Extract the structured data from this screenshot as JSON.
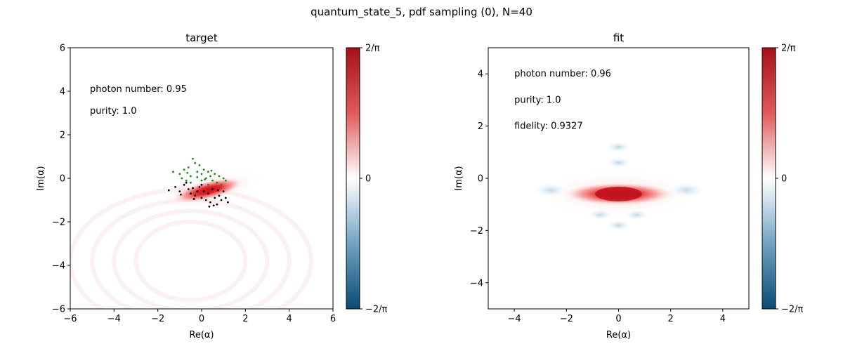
{
  "figure": {
    "title": "quantum_state_5, pdf sampling (0), N=40"
  },
  "colors": {
    "positive": "#c8151b",
    "zero": "#ffffff",
    "negative": "#0b4f78",
    "sample_green": "#1a8a1a",
    "sample_black": "#000000"
  },
  "chart_data": [
    {
      "type": "heatmap",
      "title": "target",
      "xlabel": "Re(α)",
      "ylabel": "Im(α)",
      "xlim": [
        -6,
        6
      ],
      "ylim": [
        -6,
        6
      ],
      "xticks": [
        -6,
        -4,
        -2,
        0,
        2,
        4,
        6
      ],
      "yticks": [
        -6,
        -4,
        -2,
        0,
        2,
        4,
        6
      ],
      "annotations": [
        {
          "text": "photon number: 0.95",
          "x": -5.1,
          "y": 4.1
        },
        {
          "text": "purity: 1.0",
          "x": -5.1,
          "y": 3.1
        }
      ],
      "colorbar": {
        "ticks": [
          "2/π",
          "0",
          "−2/π"
        ]
      },
      "blob": {
        "cx": 0.3,
        "cy": -0.55,
        "a": 1.7,
        "b": 0.45,
        "angle_deg": -14
      },
      "samples_green": [
        [
          -1.3,
          0.3
        ],
        [
          -1.0,
          0.2
        ],
        [
          -0.8,
          0.4
        ],
        [
          -0.6,
          0.5
        ],
        [
          -0.5,
          0.1
        ],
        [
          -0.4,
          0.9
        ],
        [
          -0.3,
          0.7
        ],
        [
          -0.2,
          0.3
        ],
        [
          -0.1,
          0.6
        ],
        [
          0.0,
          0.2
        ],
        [
          0.1,
          0.4
        ],
        [
          0.2,
          0.0
        ],
        [
          0.3,
          0.3
        ],
        [
          0.4,
          0.1
        ],
        [
          0.5,
          -0.1
        ],
        [
          0.6,
          0.2
        ],
        [
          0.7,
          -0.2
        ],
        [
          0.8,
          0.1
        ],
        [
          1.0,
          0.0
        ],
        [
          1.1,
          -0.1
        ],
        [
          -0.9,
          0.0
        ],
        [
          -0.7,
          -0.1
        ],
        [
          0.0,
          -0.1
        ],
        [
          0.3,
          -0.3
        ],
        [
          -0.5,
          -0.2
        ],
        [
          0.9,
          -0.3
        ],
        [
          -0.2,
          0.05
        ],
        [
          0.45,
          0.35
        ],
        [
          -0.65,
          0.25
        ],
        [
          0.15,
          -0.05
        ]
      ],
      "samples_black": [
        [
          -1.5,
          -0.55
        ],
        [
          -1.2,
          -0.4
        ],
        [
          -1.0,
          -0.6
        ],
        [
          -0.8,
          -0.3
        ],
        [
          -0.6,
          -0.5
        ],
        [
          -0.5,
          -0.7
        ],
        [
          -0.4,
          -0.45
        ],
        [
          -0.3,
          -0.8
        ],
        [
          -0.2,
          -0.6
        ],
        [
          -0.1,
          -0.4
        ],
        [
          0.0,
          -0.9
        ],
        [
          0.1,
          -0.6
        ],
        [
          0.2,
          -1.0
        ],
        [
          0.3,
          -0.7
        ],
        [
          0.4,
          -1.1
        ],
        [
          0.5,
          -0.5
        ],
        [
          0.6,
          -0.9
        ],
        [
          0.7,
          -1.2
        ],
        [
          0.8,
          -0.8
        ],
        [
          0.9,
          -1.0
        ],
        [
          1.0,
          -0.6
        ],
        [
          1.1,
          -0.9
        ],
        [
          1.2,
          -1.1
        ],
        [
          -0.7,
          -0.2
        ],
        [
          0.0,
          -0.3
        ],
        [
          0.35,
          -1.3
        ],
        [
          -0.35,
          -0.95
        ],
        [
          0.75,
          -0.55
        ],
        [
          -0.95,
          -0.75
        ],
        [
          0.55,
          -1.25
        ]
      ]
    },
    {
      "type": "heatmap",
      "title": "fit",
      "xlabel": "Re(α)",
      "ylabel": "Im(α)",
      "xlim": [
        -5,
        5
      ],
      "ylim": [
        -5,
        5
      ],
      "xticks": [
        -4,
        -2,
        0,
        2,
        4
      ],
      "yticks": [
        -4,
        -2,
        0,
        2,
        4
      ],
      "annotations": [
        {
          "text": "photon number: 0.96",
          "x": -4.0,
          "y": 4.0
        },
        {
          "text": "purity: 1.0",
          "x": -4.0,
          "y": 3.0
        },
        {
          "text": "fidelity: 0.9327",
          "x": -4.0,
          "y": 2.0
        }
      ],
      "colorbar": {
        "ticks": [
          "2/π",
          "0",
          "−2/π"
        ]
      },
      "blob": {
        "cx": 0.0,
        "cy": -0.6,
        "a": 2.2,
        "b": 0.45,
        "angle_deg": 0
      }
    }
  ]
}
